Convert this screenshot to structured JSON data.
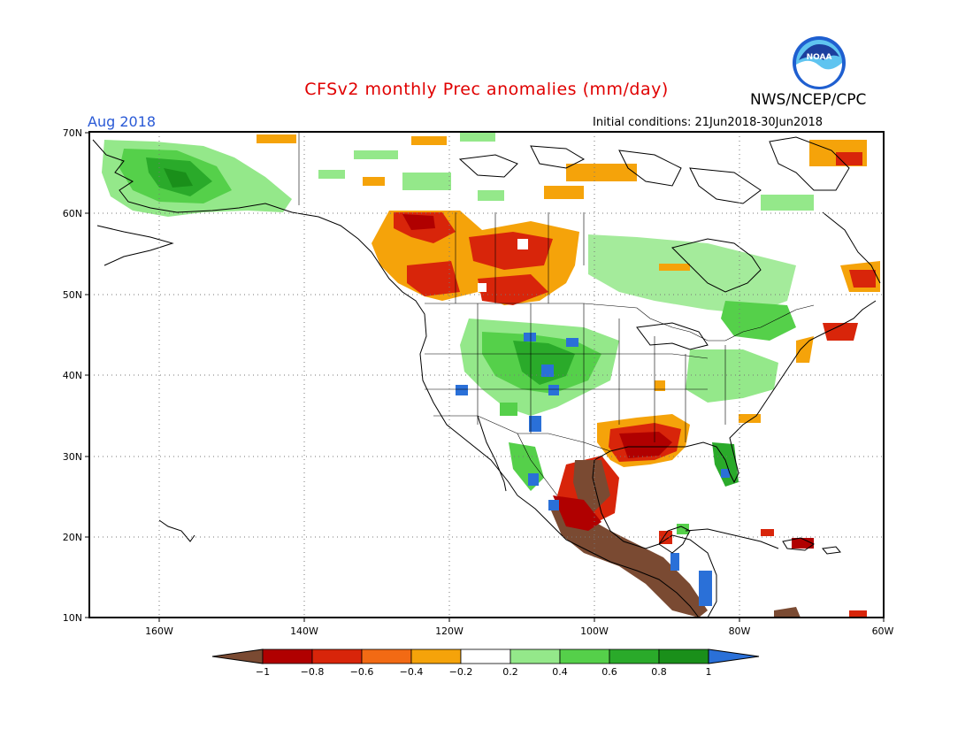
{
  "header": {
    "title": "CFSv2 monthly Prec anomalies (mm/day)",
    "period": "Aug 2018",
    "initial_conditions": "Initial conditions: 21Jun2018-30Jun2018",
    "agency": "NWS/NCEP/CPC",
    "logo_text": "NOAA"
  },
  "axes": {
    "lat_labels": [
      "70N",
      "60N",
      "50N",
      "40N",
      "30N",
      "20N",
      "10N"
    ],
    "lon_labels": [
      "160W",
      "140W",
      "120W",
      "100W",
      "80W",
      "60W"
    ]
  },
  "colorbar": {
    "tick_labels": [
      "-1",
      "-0.8",
      "-0.6",
      "-0.4",
      "-0.2",
      "0.2",
      "0.4",
      "0.6",
      "0.8",
      "1"
    ],
    "colors": [
      "#7a4a32",
      "#b00000",
      "#d8250a",
      "#f26a14",
      "#f5a30a",
      "#ffffff",
      "#94e88a",
      "#55d04a",
      "#2aaa2a",
      "#1a8f1a",
      "#2a70d8"
    ]
  },
  "colors": {
    "title": "#e00000",
    "period": "#2a5ad6",
    "grid": "#777777",
    "coast": "#000000"
  }
}
